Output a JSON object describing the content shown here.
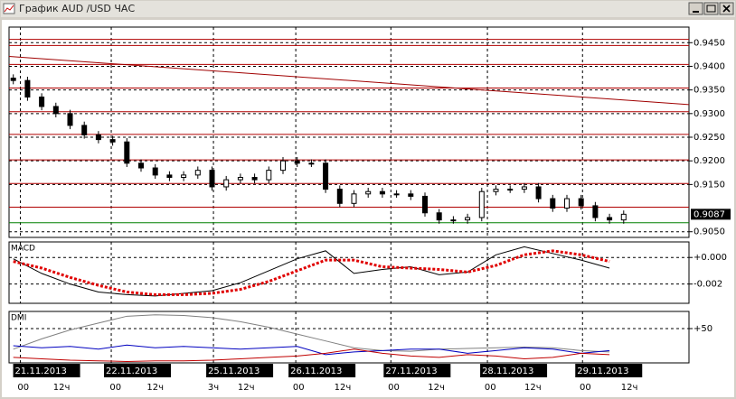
{
  "window": {
    "title": "График AUD /USD ЧАС"
  },
  "chart_data": [
    {
      "type": "candlestick",
      "x": [
        0,
        1,
        2,
        3,
        4,
        5,
        6,
        7,
        8,
        9,
        10,
        11,
        12,
        13,
        14,
        15,
        16,
        17,
        18,
        19,
        20,
        21,
        22,
        23,
        24,
        25,
        26,
        27,
        28,
        29,
        30,
        31,
        32,
        33,
        34,
        35,
        36,
        37,
        38,
        39,
        40,
        41,
        42,
        43
      ],
      "open": [
        0.9375,
        0.937,
        0.9335,
        0.9315,
        0.93,
        0.9275,
        0.9255,
        0.9245,
        0.924,
        0.9195,
        0.9185,
        0.917,
        0.9165,
        0.917,
        0.918,
        0.9145,
        0.916,
        0.9165,
        0.916,
        0.918,
        0.92,
        0.9195,
        0.9195,
        0.914,
        0.911,
        0.913,
        0.9135,
        0.913,
        0.913,
        0.9125,
        0.909,
        0.9075,
        0.9075,
        0.908,
        0.9135,
        0.914,
        0.914,
        0.9145,
        0.912,
        0.91,
        0.912,
        0.9105,
        0.908,
        0.9075
      ],
      "high": [
        0.9383,
        0.9378,
        0.9343,
        0.9323,
        0.9308,
        0.9283,
        0.9263,
        0.9253,
        0.9248,
        0.9203,
        0.9193,
        0.9178,
        0.9178,
        0.9188,
        0.9188,
        0.9168,
        0.9173,
        0.9173,
        0.9188,
        0.9208,
        0.9208,
        0.9203,
        0.9203,
        0.9148,
        0.9138,
        0.9143,
        0.9143,
        0.9138,
        0.9138,
        0.9133,
        0.9098,
        0.9083,
        0.9088,
        0.9143,
        0.9148,
        0.9148,
        0.9153,
        0.9153,
        0.9128,
        0.9128,
        0.9128,
        0.9113,
        0.9088,
        0.9095
      ],
      "low": [
        0.9362,
        0.9327,
        0.9307,
        0.9292,
        0.9267,
        0.9247,
        0.9237,
        0.9232,
        0.9187,
        0.9177,
        0.9162,
        0.9157,
        0.9157,
        0.9162,
        0.9137,
        0.9137,
        0.9152,
        0.9152,
        0.9152,
        0.9172,
        0.9187,
        0.9187,
        0.9132,
        0.9102,
        0.9102,
        0.9122,
        0.9122,
        0.9122,
        0.9117,
        0.9082,
        0.9067,
        0.9067,
        0.9067,
        0.9072,
        0.9127,
        0.9132,
        0.9132,
        0.9112,
        0.9092,
        0.9092,
        0.9097,
        0.9072,
        0.9067,
        0.9067
      ],
      "close": [
        0.937,
        0.9335,
        0.9315,
        0.93,
        0.9275,
        0.9255,
        0.9245,
        0.924,
        0.9195,
        0.9185,
        0.917,
        0.9165,
        0.917,
        0.918,
        0.9145,
        0.916,
        0.9165,
        0.916,
        0.918,
        0.92,
        0.9195,
        0.9195,
        0.914,
        0.911,
        0.913,
        0.9135,
        0.913,
        0.913,
        0.9125,
        0.909,
        0.9075,
        0.9075,
        0.908,
        0.9135,
        0.914,
        0.914,
        0.9145,
        0.912,
        0.91,
        0.912,
        0.9105,
        0.908,
        0.9075,
        0.9087
      ],
      "up_color": "#ffffff",
      "down_color": "#000000",
      "ylim": [
        0.9038,
        0.9483
      ],
      "yticks": [
        {
          "value": 0.905,
          "label": "0.9050"
        },
        {
          "value": 0.915,
          "label": "0.9150"
        },
        {
          "value": 0.92,
          "label": "0.9200"
        },
        {
          "value": 0.925,
          "label": "0.9250"
        },
        {
          "value": 0.93,
          "label": "0.9300"
        },
        {
          "value": 0.935,
          "label": "0.9350"
        },
        {
          "value": 0.94,
          "label": "0.9400"
        },
        {
          "value": 0.945,
          "label": "0.9450"
        }
      ],
      "xlim": [
        -0.3,
        47.6
      ],
      "xticks": [
        {
          "value": 0.5,
          "label": "21.11.2013"
        },
        {
          "value": 6.9,
          "label": "22.11.2013"
        },
        {
          "value": 14.1,
          "label": "25.11.2013"
        },
        {
          "value": 19.9,
          "label": "26.11.2013"
        },
        {
          "value": 26.6,
          "label": "27.11.2013"
        },
        {
          "value": 33.4,
          "label": "28.11.2013"
        },
        {
          "value": 40.1,
          "label": "29.11.2013"
        }
      ],
      "x_sublabels": [
        {
          "value": 0.7,
          "label": "00"
        },
        {
          "value": 3.4,
          "label": "12ч"
        },
        {
          "value": 7.2,
          "label": "00"
        },
        {
          "value": 10.0,
          "label": "12ч"
        },
        {
          "value": 14.1,
          "label": "3ч"
        },
        {
          "value": 16.4,
          "label": "12ч"
        },
        {
          "value": 20.1,
          "label": "00"
        },
        {
          "value": 23.2,
          "label": "12ч"
        },
        {
          "value": 26.8,
          "label": "00"
        },
        {
          "value": 29.8,
          "label": "12ч"
        },
        {
          "value": 33.6,
          "label": "00"
        },
        {
          "value": 36.6,
          "label": "12ч"
        },
        {
          "value": 40.3,
          "label": "00"
        },
        {
          "value": 43.4,
          "label": "12ч"
        }
      ],
      "levels": [
        {
          "value": 0.9457,
          "color": "#b00000"
        },
        {
          "value": 0.9444,
          "color": "#b00000"
        },
        {
          "value": 0.9404,
          "color": "#b00000"
        },
        {
          "value": 0.9354,
          "color": "#b00000"
        },
        {
          "value": 0.9304,
          "color": "#b00000"
        },
        {
          "value": 0.9256,
          "color": "#b00000"
        },
        {
          "value": 0.9202,
          "color": "#b00000"
        },
        {
          "value": 0.9152,
          "color": "#b00000"
        },
        {
          "value": 0.9102,
          "color": "#b00000"
        },
        {
          "value": 0.9069,
          "color": "#008000"
        }
      ],
      "trendline": {
        "x": [
          -0.3,
          47.6
        ],
        "values": [
          0.9421,
          0.9319
        ],
        "color": "#a00000"
      },
      "last_price": {
        "value": 0.9087,
        "label": "0.9087"
      },
      "grid": true
    },
    {
      "type": "line",
      "title": "MACD",
      "x": [
        0,
        2,
        4,
        6,
        8,
        10,
        12,
        14,
        16,
        18,
        20,
        22,
        24,
        26,
        28,
        30,
        32,
        34,
        36,
        38,
        40,
        42
      ],
      "series": [
        {
          "color": "#000000",
          "style": "solid",
          "values": [
            -0.0001,
            -0.0012,
            -0.002,
            -0.0026,
            -0.0028,
            -0.0029,
            -0.0027,
            -0.0025,
            -0.0019,
            -0.001,
            -0.0001,
            0.0005,
            -0.0012,
            -0.0009,
            -0.0007,
            -0.0013,
            -0.0011,
            0.0002,
            0.0008,
            0.0003,
            -0.0002,
            -0.0008
          ]
        },
        {
          "color": "#e00000",
          "style": "dotted",
          "values": [
            -0.0003,
            -0.0008,
            -0.0015,
            -0.0021,
            -0.0026,
            -0.0028,
            -0.0028,
            -0.0027,
            -0.0024,
            -0.0018,
            -0.001,
            -0.0002,
            -0.0002,
            -0.0007,
            -0.0008,
            -0.0009,
            -0.0011,
            -0.0006,
            0.0002,
            0.0005,
            0.0002,
            -0.0003
          ]
        }
      ],
      "ylim": [
        -0.00345,
        0.00117
      ],
      "yticks": [
        {
          "value": 0,
          "label": "+0.000"
        },
        {
          "value": -0.002,
          "label": "-0.002"
        }
      ],
      "grid": true
    },
    {
      "type": "line",
      "title": "DMI",
      "x": [
        0,
        2,
        4,
        6,
        8,
        10,
        12,
        14,
        16,
        18,
        20,
        22,
        24,
        26,
        28,
        30,
        32,
        34,
        36,
        38,
        40,
        42
      ],
      "series": [
        {
          "color": "#808080",
          "style": "solid",
          "values": [
            20,
            35,
            48,
            58,
            68,
            70,
            69,
            66,
            60,
            52,
            42,
            32,
            22,
            18,
            17,
            20,
            21,
            22,
            23,
            22,
            18,
            16
          ]
        },
        {
          "color": "#0000c0",
          "style": "solid",
          "values": [
            25,
            22,
            24,
            20,
            26,
            22,
            24,
            22,
            20,
            22,
            24,
            12,
            16,
            18,
            20,
            20,
            14,
            18,
            22,
            20,
            14,
            18
          ]
        },
        {
          "color": "#c00000",
          "style": "solid",
          "values": [
            8,
            6,
            4,
            3,
            2,
            3,
            3,
            4,
            6,
            8,
            10,
            14,
            20,
            14,
            10,
            8,
            12,
            10,
            6,
            8,
            14,
            12
          ]
        }
      ],
      "ylim": [
        0,
        75
      ],
      "yticks": [
        {
          "value": 50,
          "label": "+50"
        }
      ],
      "grid": true
    }
  ]
}
